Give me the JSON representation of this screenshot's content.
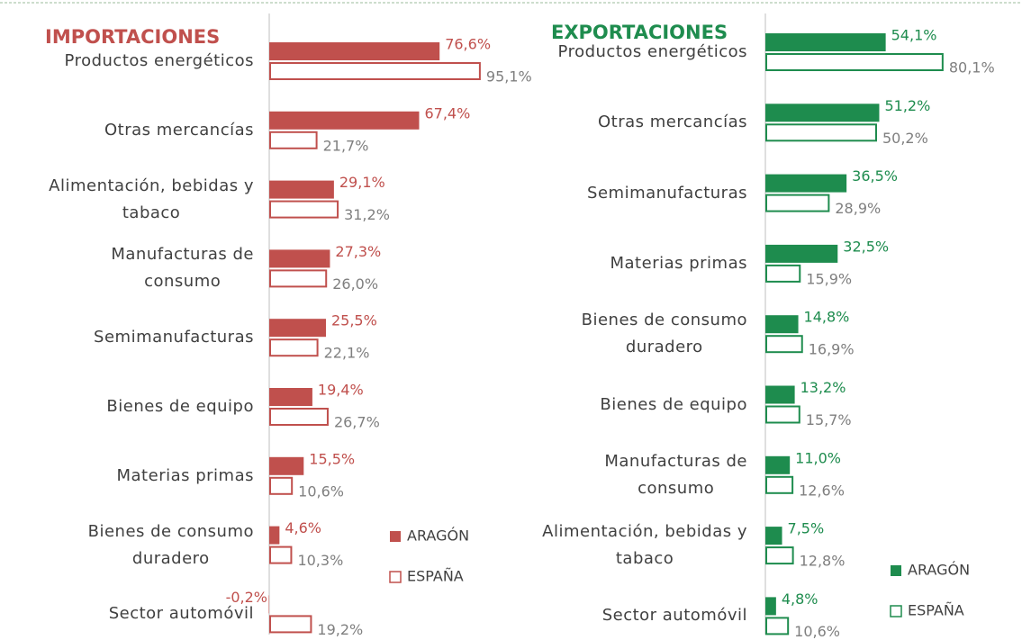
{
  "chart_data": [
    {
      "type": "bar",
      "orientation": "horizontal",
      "title": "IMPORTACIONES",
      "categories": [
        "Productos energéticos",
        "Otras mercancías",
        "Alimentación, bebidas y\ntabaco",
        "Manufacturas de\nconsumo",
        "Semimanufacturas",
        "Bienes de equipo",
        "Materias primas",
        "Bienes de consumo\nduradero",
        "Sector automóvil"
      ],
      "series": [
        {
          "name": "ARAGÓN",
          "color": "#c0504d",
          "fill": true,
          "values": [
            76.6,
            67.4,
            29.1,
            27.3,
            25.5,
            19.4,
            15.5,
            4.6,
            -0.2
          ],
          "value_labels": [
            "76,6%",
            "67,4%",
            "29,1%",
            "27,3%",
            "25,5%",
            "19,4%",
            "15,5%",
            "4,6%",
            "-0,2%"
          ]
        },
        {
          "name": "ESPAÑA",
          "color": "#c0504d",
          "fill": false,
          "values": [
            95.1,
            21.7,
            31.2,
            26.0,
            22.1,
            26.7,
            10.6,
            10.3,
            19.2
          ],
          "value_labels": [
            "95,1%",
            "21,7%",
            "31,2%",
            "26,0%",
            "22,1%",
            "26,7%",
            "10,6%",
            "10,3%",
            "19,2%"
          ]
        }
      ],
      "legend": "bottom-right"
    },
    {
      "type": "bar",
      "orientation": "horizontal",
      "title": "EXPORTACIONES",
      "categories": [
        "Productos energéticos",
        "Otras mercancías",
        "Semimanufacturas",
        "Materias primas",
        "Bienes de consumo\nduradero",
        "Bienes de equipo",
        "Manufacturas de\nconsumo",
        "Alimentación, bebidas y\ntabaco",
        "Sector automóvil"
      ],
      "series": [
        {
          "name": "ARAGÓN",
          "color": "#1e8c4e",
          "fill": true,
          "values": [
            54.1,
            51.2,
            36.5,
            32.5,
            14.8,
            13.2,
            11.0,
            7.5,
            4.8
          ],
          "value_labels": [
            "54,1%",
            "51,2%",
            "36,5%",
            "32,5%",
            "14,8%",
            "13,2%",
            "11,0%",
            "7,5%",
            "4,8%"
          ]
        },
        {
          "name": "ESPAÑA",
          "color": "#1e8c4e",
          "fill": false,
          "values": [
            80.1,
            50.2,
            28.9,
            15.9,
            16.9,
            15.7,
            12.6,
            12.8,
            10.6
          ],
          "value_labels": [
            "80,1%",
            "50,2%",
            "28,9%",
            "15,9%",
            "16,9%",
            "15,7%",
            "12,6%",
            "12,8%",
            "10,6%"
          ]
        }
      ],
      "legend": "bottom-right"
    }
  ]
}
